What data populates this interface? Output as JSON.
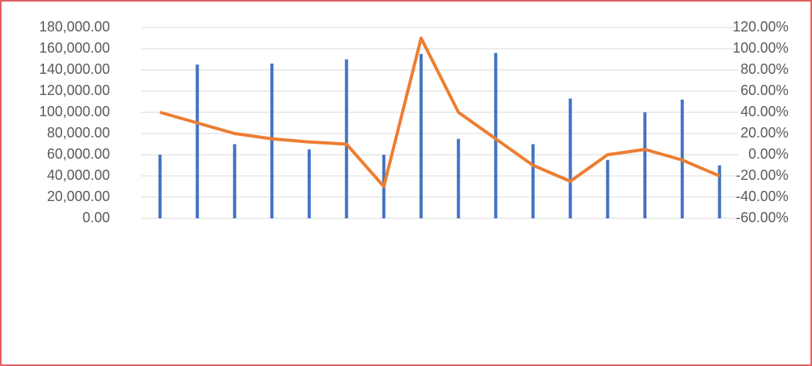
{
  "chart_data": {
    "type": "combo",
    "bar_values": [
      60000,
      145000,
      70000,
      146000,
      65000,
      150000,
      60000,
      155000,
      75000,
      156000,
      70000,
      113000,
      55000,
      100000,
      112000,
      50000
    ],
    "bar_color": "#4472c4",
    "line_values": [
      40,
      30,
      20,
      15,
      12,
      10,
      -30,
      110,
      40,
      15,
      -10,
      -25,
      0,
      5,
      -5,
      -20
    ],
    "line_color": "#ed7d31",
    "ylim": [
      0,
      180000
    ],
    "yticks": [
      {
        "value": 0,
        "label": "0.00"
      },
      {
        "value": 20000,
        "label": "20,000.00"
      },
      {
        "value": 40000,
        "label": "40,000.00"
      },
      {
        "value": 60000,
        "label": "60,000.00"
      },
      {
        "value": 80000,
        "label": "80,000.00"
      },
      {
        "value": 100000,
        "label": "100,000.00"
      },
      {
        "value": 120000,
        "label": "120,000.00"
      },
      {
        "value": 140000,
        "label": "140,000.00"
      },
      {
        "value": 160000,
        "label": "160,000.00"
      },
      {
        "value": 180000,
        "label": "180,000.00"
      }
    ],
    "y2lim": [
      -60,
      120
    ],
    "y2ticks": [
      {
        "value": -60,
        "label": "-60.00%"
      },
      {
        "value": -40,
        "label": "-40.00%"
      },
      {
        "value": -20,
        "label": "-20.00%"
      },
      {
        "value": 0,
        "label": "0.00%"
      },
      {
        "value": 20,
        "label": "20.00%"
      },
      {
        "value": 40,
        "label": "40.00%"
      },
      {
        "value": 60,
        "label": "60.00%"
      },
      {
        "value": 80,
        "label": "80.00%"
      },
      {
        "value": 100,
        "label": "100.00%"
      },
      {
        "value": 120,
        "label": "120.00%"
      }
    ],
    "grid": true
  }
}
